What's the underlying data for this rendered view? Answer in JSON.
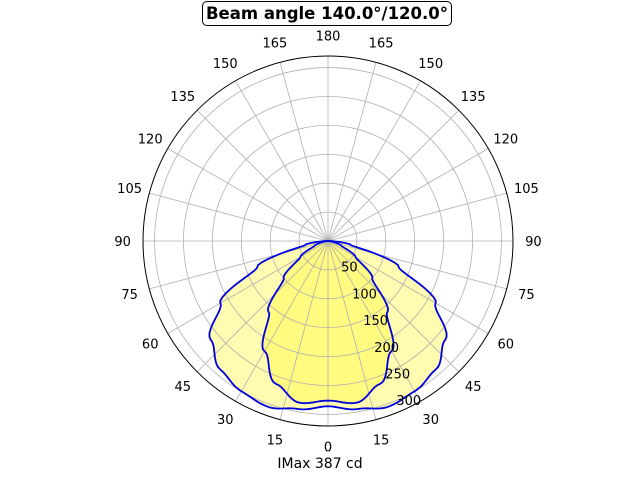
{
  "chart_data": {
    "type": "polar-area",
    "title": "Beam angle 140.0°/120.0°",
    "xlabel": "IMax 387 cd",
    "radial_ticks": [
      50,
      100,
      150,
      200,
      250,
      300
    ],
    "r_max": 320,
    "angle_ticks": [
      {
        "deg": 0,
        "label": "0"
      },
      {
        "deg": 15,
        "label": "15"
      },
      {
        "deg": 30,
        "label": "30"
      },
      {
        "deg": 45,
        "label": "45"
      },
      {
        "deg": 60,
        "label": "60"
      },
      {
        "deg": 75,
        "label": "75"
      },
      {
        "deg": 90,
        "label": "90"
      },
      {
        "deg": 105,
        "label": "105"
      },
      {
        "deg": 120,
        "label": "120"
      },
      {
        "deg": 135,
        "label": "135"
      },
      {
        "deg": 150,
        "label": "150"
      },
      {
        "deg": 165,
        "label": "165"
      },
      {
        "deg": 180,
        "label": "180"
      },
      {
        "deg": 195,
        "label": "165"
      },
      {
        "deg": 210,
        "label": "150"
      },
      {
        "deg": 225,
        "label": "135"
      },
      {
        "deg": 240,
        "label": "120"
      },
      {
        "deg": 255,
        "label": "105"
      },
      {
        "deg": 270,
        "label": "90"
      },
      {
        "deg": 285,
        "label": "75"
      },
      {
        "deg": 300,
        "label": "60"
      },
      {
        "deg": 315,
        "label": "45"
      },
      {
        "deg": 330,
        "label": "30"
      },
      {
        "deg": 345,
        "label": "15"
      }
    ],
    "series": [
      {
        "angles": [
          0,
          10,
          20,
          30,
          40,
          50,
          60,
          70,
          80,
          90
        ],
        "values": [
          286,
          295,
          305,
          300,
          290,
          265,
          215,
          130,
          40,
          0
        ],
        "fill_color": "#fffbb0"
      },
      {
        "angles": [
          0,
          10,
          20,
          30,
          40,
          50,
          60,
          70,
          80,
          90
        ],
        "values": [
          276,
          284,
          263,
          220,
          160,
          100,
          55,
          25,
          8,
          0
        ],
        "fill_color": "#fffa80"
      }
    ],
    "line_color": "#0000dd",
    "grid": true
  }
}
